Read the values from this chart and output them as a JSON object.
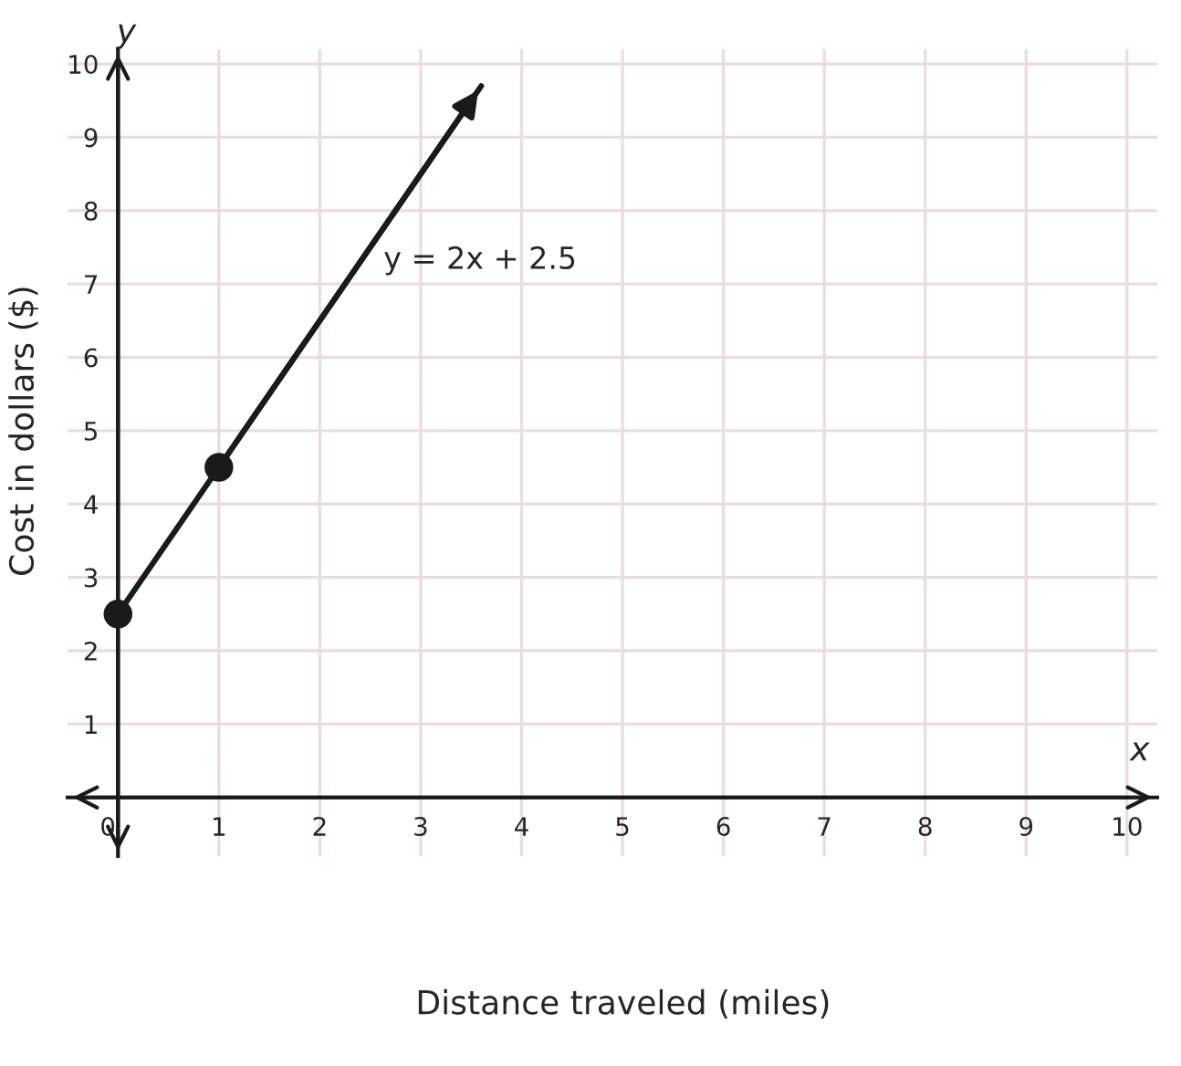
{
  "chart_data": {
    "type": "line",
    "xlabel": "Distance traveled (miles)",
    "ylabel": "Cost in dollars ($)",
    "annotations": [
      "y = 2x + 2.5",
      "x",
      "y"
    ],
    "xlim": [
      -0.5,
      10.3
    ],
    "ylim": [
      -0.8,
      10.2
    ],
    "xticks": [
      0,
      1,
      2,
      3,
      4,
      5,
      6,
      7,
      8,
      9,
      10
    ],
    "yticks": [
      1,
      2,
      3,
      4,
      5,
      6,
      7,
      8,
      9,
      10
    ],
    "grid": true,
    "series": [
      {
        "type": "line",
        "color": "#1a1a1a",
        "marker": "none",
        "x": [
          0,
          1,
          3.6
        ],
        "values": [
          2.5,
          4.5,
          9.7
        ]
      },
      {
        "type": "scatter",
        "color": "#1a1a1a",
        "marker": "circle",
        "x": [
          0,
          1
        ],
        "values": [
          2.5,
          4.5
        ]
      }
    ]
  }
}
